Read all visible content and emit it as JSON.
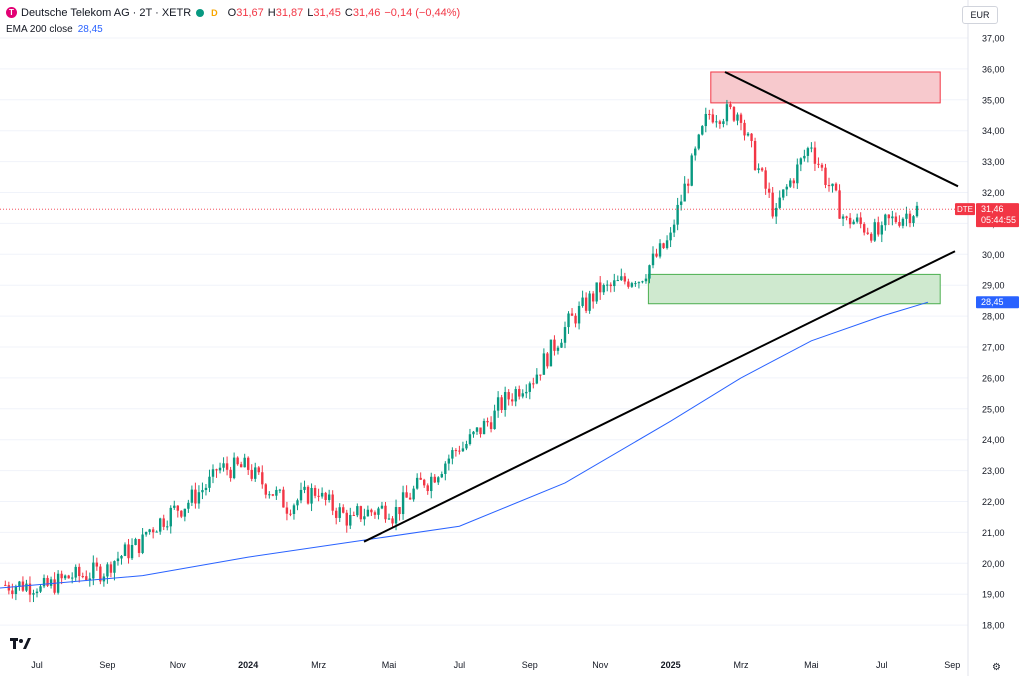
{
  "header": {
    "symbol": "Deutsche Telekom AG · 2T · XETR",
    "logo_letter": "T",
    "d_badge": "D",
    "o_label": "O",
    "o_value": "31,67",
    "h_label": "H",
    "h_value": "31,87",
    "l_label": "L",
    "l_value": "31,45",
    "c_label": "C",
    "c_value": "31,46",
    "change": "−0,14 (−0,44%)",
    "ema_label": "EMA 200 close",
    "ema_value": "28,45"
  },
  "currency": "EUR",
  "price_tag": {
    "ticker": "DTE",
    "price": "31,46",
    "countdown": "05:44:55"
  },
  "ema_tag": "28,45",
  "colors": {
    "up": "#089981",
    "down": "#f23645",
    "ema": "#2962ff",
    "resistance_fill": "#f7c9cd",
    "support_fill": "#cfe9cf"
  },
  "chart_data": {
    "type": "candlestick",
    "title": "Deutsche Telekom AG · 2T · XETR",
    "ylim": [
      17.0,
      37.0
    ],
    "y_ticks": [
      "18,00",
      "19,00",
      "20,00",
      "21,00",
      "22,00",
      "23,00",
      "24,00",
      "25,00",
      "26,00",
      "27,00",
      "28,00",
      "29,00",
      "30,00",
      "31,00",
      "32,00",
      "33,00",
      "34,00",
      "35,00",
      "36,00",
      "37,00"
    ],
    "y_tick_values": [
      18,
      19,
      20,
      21,
      22,
      23,
      24,
      25,
      26,
      27,
      28,
      29,
      30,
      31,
      32,
      33,
      34,
      35,
      36,
      37
    ],
    "x_ticks": [
      "Jul",
      "Sep",
      "Nov",
      "2024",
      "Mrz",
      "Mai",
      "Jul",
      "Sep",
      "Nov",
      "2025",
      "Mrz",
      "Mai",
      "Jul",
      "Sep"
    ],
    "x_tick_dates": [
      "2023-07",
      "2023-09",
      "2023-11",
      "2024-01",
      "2024-03",
      "2024-05",
      "2024-07",
      "2024-09",
      "2024-11",
      "2025-01",
      "2025-03",
      "2025-05",
      "2025-07",
      "2025-09"
    ],
    "bold_x_ticks": [
      "2024",
      "2025"
    ],
    "close_series": [
      [
        "2023-07",
        19.3
      ],
      [
        "2023-08",
        19.6
      ],
      [
        "2023-09",
        19.8
      ],
      [
        "2023-10",
        20.7
      ],
      [
        "2023-11",
        21.8
      ],
      [
        "2023-12",
        22.7
      ],
      [
        "2024-01",
        23.1
      ],
      [
        "2024-02",
        22.0
      ],
      [
        "2024-03",
        22.4
      ],
      [
        "2024-04",
        21.3
      ],
      [
        "2024-05",
        21.8
      ],
      [
        "2024-06",
        22.7
      ],
      [
        "2024-07",
        23.8
      ],
      [
        "2024-08",
        24.8
      ],
      [
        "2024-09",
        26.0
      ],
      [
        "2024-10",
        27.6
      ],
      [
        "2024-11",
        28.9
      ],
      [
        "2024-12",
        29.3
      ],
      [
        "2025-01",
        30.5
      ],
      [
        "2025-02",
        34.3
      ],
      [
        "2025-03",
        34.6
      ],
      [
        "2025-04",
        31.2
      ],
      [
        "2025-05",
        33.6
      ],
      [
        "2025-06",
        31.0
      ],
      [
        "2025-07",
        30.6
      ],
      [
        "2025-08",
        31.46
      ]
    ],
    "ema200": {
      "name": "EMA 200 close",
      "points": [
        [
          "2023-07",
          19.2
        ],
        [
          "2023-10",
          19.6
        ],
        [
          "2024-01",
          20.2
        ],
        [
          "2024-04",
          20.7
        ],
        [
          "2024-07",
          21.2
        ],
        [
          "2024-10",
          22.6
        ],
        [
          "2025-01",
          24.6
        ],
        [
          "2025-03",
          26.0
        ],
        [
          "2025-05",
          27.2
        ],
        [
          "2025-07",
          28.0
        ],
        [
          "2025-08",
          28.45
        ]
      ]
    },
    "resistance_zone": {
      "y_range": [
        34.9,
        35.9
      ],
      "date_range": [
        "2025-02",
        "2025-09"
      ]
    },
    "support_zone": {
      "y_range": [
        28.4,
        29.35
      ],
      "date_range": [
        "2024-12",
        "2025-09"
      ]
    },
    "trendlines": [
      {
        "from": [
          "2024-04",
          20.7
        ],
        "to": [
          "2025-09",
          30.1
        ]
      },
      {
        "from": [
          "2025-02",
          35.9
        ],
        "to": [
          "2025-09",
          32.2
        ]
      }
    ],
    "last_price": 31.46
  }
}
